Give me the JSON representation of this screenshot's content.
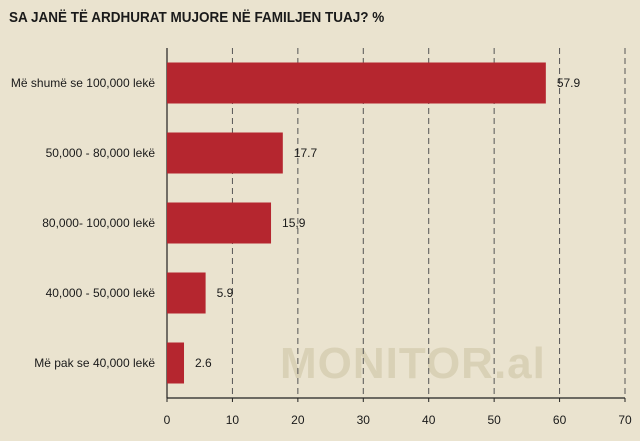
{
  "header": {
    "title": "SA JANË TË ARDHURAT MUJORE NË FAMILJEN TUAJ?  %"
  },
  "watermark": "MONITOR.al",
  "colors": {
    "bar": "#b5262f",
    "background": "#eae3cf",
    "grid": "#555555"
  },
  "chart_data": {
    "type": "bar",
    "orientation": "horizontal",
    "title": "SA JANË TË ARDHURAT MUJORE NË FAMILJEN TUAJ?  %",
    "categories": [
      "Më shumë se 100,000 lekë",
      "50,000 - 80,000 lekë",
      "80,000- 100,000 lekë",
      "40,000 - 50,000 lekë",
      "Më pak se 40,000 lekë"
    ],
    "values": [
      57.9,
      17.7,
      15.9,
      5.9,
      2.6
    ],
    "value_labels": [
      "57.9",
      "17.7",
      "15,9",
      "5.9",
      "2.6"
    ],
    "xlim": [
      0,
      70
    ],
    "xticks": [
      "0",
      "10",
      "20",
      "30",
      "40",
      "50",
      "60",
      "70"
    ],
    "grid": "vertical dashed"
  }
}
